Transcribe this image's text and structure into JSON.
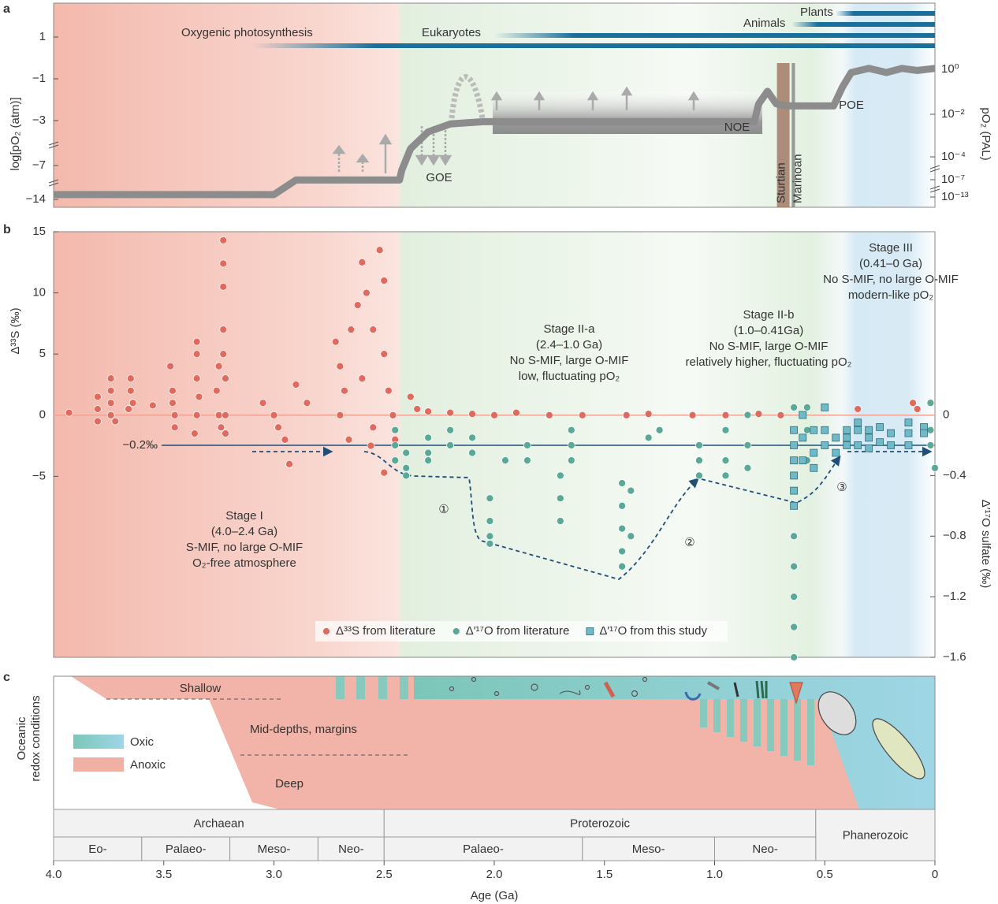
{
  "chart_data": [
    {
      "type": "line",
      "label": "a",
      "xlim": [
        4,
        0
      ],
      "ylabel": "log[pO₂ (atm)]",
      "y2label": "pO₂ (PAL)",
      "yticks": [
        1,
        {
          "value": -1,
          "label": "−1"
        },
        {
          "value": -3,
          "label": "−3"
        },
        {
          "value": -7,
          "label": "−7"
        },
        {
          "value": -14,
          "label": "−14"
        }
      ],
      "y2ticks": [
        {
          "value": 0,
          "label": "10⁰"
        },
        {
          "value": -2,
          "label": "10⁻²"
        },
        {
          "value": -4,
          "label": "10⁻⁴"
        },
        {
          "value": -7,
          "label": "10⁻⁷"
        },
        {
          "value": -13,
          "label": "10⁻¹³"
        }
      ],
      "color": "#8c8c8c",
      "x": [
        4.0,
        3.0,
        2.9,
        2.43,
        2.42,
        2.38,
        2.3,
        2.2,
        2.05,
        2.0,
        0.82,
        0.8,
        0.76,
        0.72,
        0.66,
        0.46,
        0.42,
        0.38,
        0.3,
        0.22,
        0.15,
        0.08,
        0
      ],
      "values": [
        -13,
        -13,
        -10,
        -10,
        -8,
        -5.5,
        -4,
        -3.3,
        -3.1,
        -3.1,
        -3.1,
        -2.2,
        -1.6,
        -2.2,
        -2.3,
        -2.3,
        -1.4,
        -0.7,
        -0.5,
        -0.7,
        -0.5,
        -0.6,
        -0.5
      ],
      "lineage_color": "#1a6f9b",
      "lineages": [
        {
          "name": "Oxygenic photosynthesis",
          "start": 3.1
        },
        {
          "name": "Eukaryotes",
          "start": 2.0
        },
        {
          "name": "Animals",
          "start": 0.65
        },
        {
          "name": "Plants",
          "start": 0.45
        }
      ],
      "glaciations": [
        {
          "name": "Sturtian",
          "start": 0.717,
          "end": 0.66,
          "color": "#a07a66"
        },
        {
          "name": "Marinoan",
          "start": 0.65,
          "end": 0.635,
          "color": "#8a8a8a"
        }
      ],
      "events": [
        "GOE",
        "NOE",
        "POE"
      ]
    },
    {
      "type": "scatter",
      "label": "b",
      "xlim": [
        4,
        0
      ],
      "ylim": [
        -19.8,
        15
      ],
      "y2lim": [
        -1.6,
        1.21
      ],
      "ylabel": "Δ³³S (‰)",
      "y2label": "Δ′¹⁷O sulfate (‰)",
      "yticks": [
        15,
        10,
        5,
        0,
        {
          "value": -5,
          "label": "−5"
        }
      ],
      "y2ticks": [
        0,
        {
          "value": -0.4,
          "label": "−0.4"
        },
        {
          "value": -0.8,
          "label": "−0.8"
        },
        {
          "value": -1.2,
          "label": "−1.2"
        },
        {
          "value": -1.6,
          "label": "−1.6"
        }
      ],
      "hlines": [
        {
          "value": 0,
          "axis": "y",
          "color": "#f0a393"
        },
        {
          "value": -0.2,
          "axis": "y2",
          "color": "#1f4e79",
          "label": "−0.2‰"
        }
      ],
      "legend": "lower center",
      "series": [
        {
          "name": "Δ³³S from literature",
          "color": "#e06a5e",
          "marker": "circle",
          "axis": "y",
          "x": [
            3.93,
            3.8,
            3.8,
            3.8,
            3.74,
            3.74,
            3.74,
            3.74,
            3.72,
            3.65,
            3.65,
            3.64,
            3.66,
            3.55,
            3.47,
            3.46,
            3.46,
            3.45,
            3.45,
            3.35,
            3.35,
            3.35,
            3.34,
            3.35,
            3.36,
            3.25,
            3.26,
            3.25,
            3.24,
            3.23,
            3.23,
            3.23,
            3.23,
            3.23,
            3.22,
            3.22,
            3.22,
            3.05,
            3.0,
            2.98,
            2.95,
            2.93,
            2.9,
            2.85,
            2.72,
            2.7,
            2.68,
            2.7,
            2.66,
            2.62,
            2.6,
            2.58,
            2.55,
            2.52,
            2.5,
            2.5,
            2.48,
            2.46,
            2.45,
            2.5,
            2.55,
            2.6,
            2.65,
            2.56,
            2.38,
            2.35,
            2.3,
            2.2,
            2.1,
            2.0,
            1.9,
            1.75,
            1.6,
            1.4,
            1.3,
            1.1,
            0.95,
            0.8,
            0.7,
            0.6,
            0.35,
            0.1,
            0.08
          ],
          "values": [
            0.2,
            1.5,
            0.5,
            -0.5,
            3,
            2,
            1,
            0,
            -0.5,
            3,
            2,
            1,
            0.5,
            0.8,
            4,
            2,
            1,
            0,
            -1,
            6,
            5,
            3,
            1.5,
            0,
            -1.5,
            4,
            2,
            0,
            -1,
            14.3,
            12.4,
            10.5,
            7,
            5,
            3,
            0,
            -1.5,
            1,
            0,
            -1,
            -2,
            -4,
            2.5,
            1,
            6,
            4,
            2,
            0,
            -2,
            9,
            12.5,
            10,
            7,
            13.5,
            11,
            5,
            2,
            0,
            -2,
            -4.7,
            -1,
            3,
            7,
            -2.5,
            1.5,
            0.5,
            0.3,
            0.2,
            0.1,
            0,
            0.2,
            0,
            0,
            0,
            0.1,
            0,
            0,
            0.1,
            0,
            0,
            0.5,
            1,
            0.5
          ]
        },
        {
          "name": "Δ′¹⁷O from literature",
          "color": "#5aa897",
          "marker": "circle",
          "axis": "y2",
          "x": [
            2.45,
            2.45,
            2.45,
            2.4,
            2.4,
            2.4,
            2.3,
            2.3,
            2.3,
            2.2,
            2.2,
            2.1,
            2.1,
            2.02,
            2.02,
            2.02,
            2.02,
            1.95,
            1.85,
            1.85,
            1.7,
            1.7,
            1.7,
            1.65,
            1.65,
            1.65,
            1.42,
            1.42,
            1.42,
            1.42,
            1.42,
            1.38,
            1.38,
            1.3,
            1.25,
            1.07,
            1.07,
            1.07,
            0.95,
            0.95,
            0.95,
            0.85,
            0.85,
            0.85,
            0.64,
            0.64,
            0.64,
            0.64,
            0.64,
            0.64,
            0.64,
            0.64,
            0.58,
            0.58,
            0.58,
            0.02,
            0.02,
            0.02,
            0.0
          ],
          "values": [
            -0.2,
            -0.1,
            -0.3,
            -0.25,
            -0.35,
            -0.4,
            -0.15,
            -0.25,
            -0.3,
            -0.1,
            -0.2,
            -0.15,
            -0.25,
            -0.55,
            -0.7,
            -0.8,
            -0.85,
            -0.3,
            -0.2,
            -0.3,
            -0.4,
            -0.55,
            -0.7,
            -0.1,
            -0.2,
            -0.3,
            -0.45,
            -0.6,
            -0.75,
            -0.9,
            -1.0,
            -0.5,
            -0.8,
            -0.15,
            -0.1,
            -0.2,
            -0.3,
            -0.4,
            -0.1,
            -0.3,
            -0.4,
            0,
            -0.2,
            -0.35,
            -0.5,
            -0.8,
            -1.0,
            -1.2,
            -1.4,
            -1.6,
            -0.2,
            0.05,
            0.05,
            -0.1,
            -0.3,
            0.08,
            -0.1,
            -0.2,
            -0.35
          ]
        },
        {
          "name": "Δ′¹⁷O from this study",
          "color": "#6fb9c9",
          "marker": "square",
          "axis": "y2",
          "x": [
            0.64,
            0.64,
            0.64,
            0.64,
            0.64,
            0.64,
            0.6,
            0.6,
            0.6,
            0.55,
            0.55,
            0.55,
            0.5,
            0.5,
            0.5,
            0.45,
            0.45,
            0.4,
            0.4,
            0.4,
            0.35,
            0.35,
            0.35,
            0.3,
            0.3,
            0.3,
            0.25,
            0.25,
            0.2,
            0.2,
            0.12,
            0.12,
            0.12,
            0.05,
            0.05
          ],
          "values": [
            -0.1,
            -0.2,
            -0.3,
            -0.4,
            -0.5,
            -0.6,
            0,
            -0.15,
            -0.3,
            -0.1,
            -0.25,
            -0.35,
            0.05,
            -0.1,
            -0.2,
            -0.15,
            -0.25,
            -0.1,
            -0.15,
            -0.2,
            -0.05,
            -0.1,
            -0.2,
            -0.1,
            -0.15,
            -0.22,
            -0.08,
            -0.18,
            -0.12,
            -0.2,
            -0.05,
            -0.12,
            -0.2,
            -0.08,
            -0.12
          ]
        }
      ],
      "stages": [
        [
          "Stage I",
          "(4.0–2.4 Ga)",
          "S-MIF, no large O-MIF",
          "O₂-free atmosphere"
        ],
        [
          "Stage II-a",
          "(2.4–1.0 Ga)",
          "No S-MIF, large O-MIF",
          "low, fluctuating pO₂"
        ],
        [
          "Stage II-b",
          "(1.0–0.41Ga)",
          "No S-MIF, large O-MIF",
          "relatively higher, fluctuating pO₂"
        ],
        [
          "Stage III",
          "(0.41–0 Ga)",
          "No S-MIF, no large O-MIF",
          "modern-like pO₂"
        ]
      ],
      "steps": [
        "①",
        "②",
        "③"
      ]
    },
    {
      "type": "timescale",
      "label": "c",
      "xlim": [
        4,
        0
      ],
      "ylabel": [
        "Oceanic",
        "redox conditions"
      ],
      "zones": [
        "Shallow",
        "Mid-depths, margins",
        "Deep"
      ],
      "legend_items": [
        {
          "name": "Oxic",
          "color": "#7cc6b8"
        },
        {
          "name": "Anoxic",
          "color": "#f0b0a4"
        }
      ],
      "eons": [
        {
          "name": "Archaean",
          "start": 4.0,
          "end": 2.5
        },
        {
          "name": "Proterozoic",
          "start": 2.5,
          "end": 0.541
        },
        {
          "name": "Phanerozoic",
          "start": 0.541,
          "end": 0
        }
      ],
      "eras": [
        {
          "name": "Eo-",
          "start": 4.0,
          "end": 3.6
        },
        {
          "name": "Palaeo-",
          "start": 3.6,
          "end": 3.2
        },
        {
          "name": "Meso-",
          "start": 3.2,
          "end": 2.8
        },
        {
          "name": "Neo-",
          "start": 2.8,
          "end": 2.5
        },
        {
          "name": "Palaeo-",
          "start": 2.5,
          "end": 1.6
        },
        {
          "name": "Meso-",
          "start": 1.6,
          "end": 1.0
        },
        {
          "name": "Neo-",
          "start": 1.0,
          "end": 0.541
        }
      ],
      "xticks": [
        {
          "value": 4,
          "label": "4.0"
        },
        3.5,
        {
          "value": 3,
          "label": "3.0"
        },
        2.5,
        {
          "value": 2,
          "label": "2.0"
        },
        1.5,
        {
          "value": 1,
          "label": "1.0"
        },
        0.5,
        0
      ],
      "xlabel": "Age (Ga)"
    }
  ]
}
